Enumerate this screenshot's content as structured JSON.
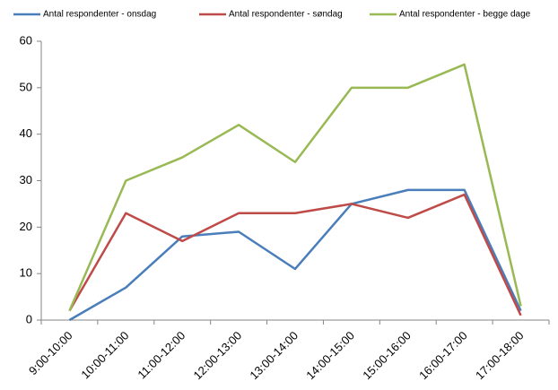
{
  "chart_data": {
    "type": "line",
    "categories": [
      "9:00-10:00",
      "10:00-11:00",
      "11:00-12:00",
      "12:00-13:00",
      "13:00-14:00",
      "14:00-15:00",
      "15:00-16:00",
      "16:00-17:00",
      "17:00-18:00"
    ],
    "series": [
      {
        "name": "Antal respondenter - onsdag",
        "color": "#4a7ebb",
        "values": [
          0,
          7,
          18,
          19,
          11,
          25,
          28,
          28,
          2
        ]
      },
      {
        "name": "Antal respondenter - søndag",
        "color": "#be4b48",
        "values": [
          2,
          23,
          17,
          23,
          23,
          25,
          22,
          27,
          1
        ]
      },
      {
        "name": "Antal respondenter - begge dage",
        "color": "#98b954",
        "values": [
          2,
          30,
          35,
          42,
          34,
          50,
          50,
          55,
          3
        ]
      }
    ],
    "ylim": [
      0,
      60
    ],
    "yticks": [
      0,
      10,
      20,
      30,
      40,
      50,
      60
    ],
    "grid": false,
    "legend": "top"
  }
}
